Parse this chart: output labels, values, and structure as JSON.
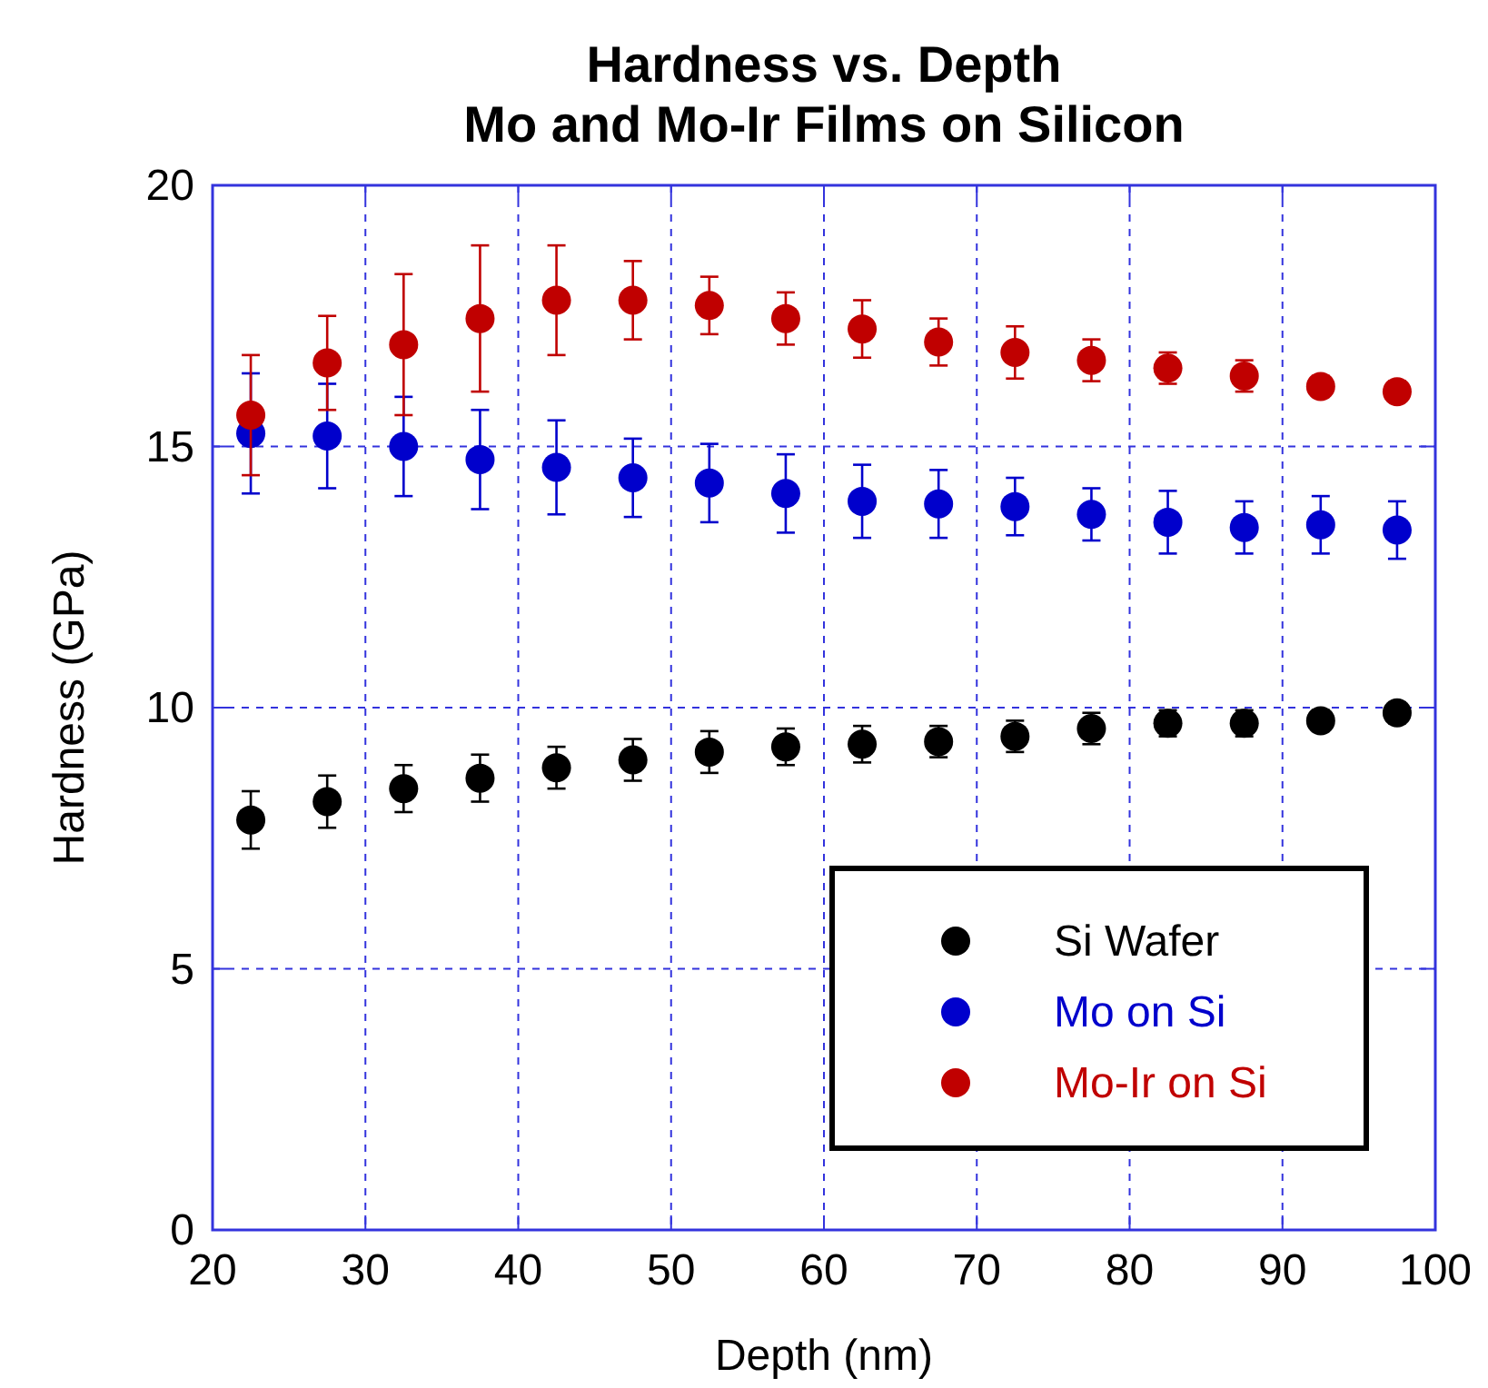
{
  "chart_data": {
    "type": "scatter",
    "title": "Hardness vs. Depth\nMo and Mo-Ir Films on Silicon",
    "xlabel": "Depth (nm)",
    "ylabel": "Hardness (GPa)",
    "x": [
      22.5,
      27.5,
      32.5,
      37.5,
      42.5,
      47.5,
      52.5,
      57.5,
      62.5,
      67.5,
      72.5,
      77.5,
      82.5,
      87.5,
      92.5,
      97.5
    ],
    "xlim": [
      20,
      100
    ],
    "xticks": [
      20,
      30,
      40,
      50,
      60,
      70,
      80,
      90,
      100
    ],
    "ylim": [
      0,
      20
    ],
    "yticks": [
      0,
      5,
      10,
      15,
      20
    ],
    "grid": true,
    "legend": "bottom right",
    "marker": "circle",
    "series": [
      {
        "name": "Si Wafer",
        "color": "#000000",
        "values": [
          7.85,
          8.2,
          8.45,
          8.65,
          8.85,
          9.0,
          9.15,
          9.25,
          9.3,
          9.35,
          9.45,
          9.6,
          9.7,
          9.7,
          9.75,
          9.9
        ],
        "errors": [
          0.55,
          0.5,
          0.45,
          0.45,
          0.4,
          0.4,
          0.4,
          0.35,
          0.35,
          0.3,
          0.3,
          0.3,
          0.25,
          0.25,
          0.2,
          0.2
        ]
      },
      {
        "name": "Mo on Si",
        "color": "#0000cc",
        "values": [
          15.25,
          15.2,
          15.0,
          14.75,
          14.6,
          14.4,
          14.3,
          14.1,
          13.95,
          13.9,
          13.85,
          13.7,
          13.55,
          13.45,
          13.5,
          13.4
        ],
        "errors": [
          1.15,
          1.0,
          0.95,
          0.95,
          0.9,
          0.75,
          0.75,
          0.75,
          0.7,
          0.65,
          0.55,
          0.5,
          0.6,
          0.5,
          0.55,
          0.55
        ]
      },
      {
        "name": "Mo-Ir on Si",
        "color": "#c00000",
        "values": [
          15.6,
          16.6,
          16.95,
          17.45,
          17.8,
          17.8,
          17.7,
          17.45,
          17.25,
          17.0,
          16.8,
          16.65,
          16.5,
          16.35,
          16.15,
          16.05
        ],
        "errors": [
          1.15,
          0.9,
          1.35,
          1.4,
          1.05,
          0.75,
          0.55,
          0.5,
          0.55,
          0.45,
          0.5,
          0.4,
          0.3,
          0.3,
          0.2,
          0.2
        ]
      }
    ]
  }
}
